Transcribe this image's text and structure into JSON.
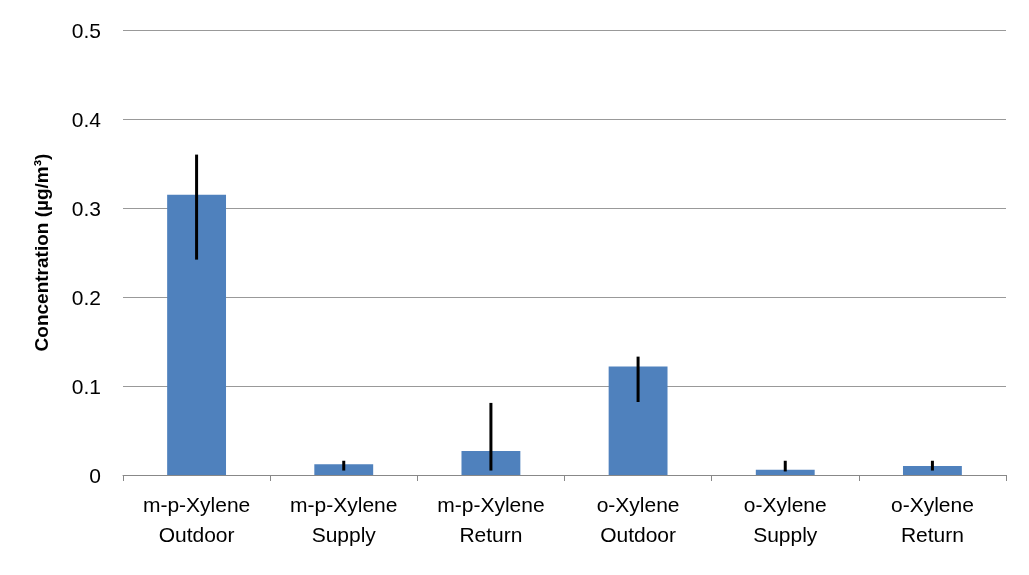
{
  "chart_data": {
    "type": "bar",
    "ylabel": "Concentration (µg/m³)",
    "categories": [
      "m-p-Xylene\nOutdoor",
      "m-p-Xylene\nSupply",
      "m-p-Xylene\nReturn",
      "o-Xylene\nOutdoor",
      "o-Xylene\nSupply",
      "o-Xylene\nReturn"
    ],
    "values": [
      0.315,
      0.012,
      0.027,
      0.122,
      0.006,
      0.01
    ],
    "errors": [
      [
        0.242,
        0.36
      ],
      [
        0.005,
        0.016
      ],
      [
        0.005,
        0.081
      ],
      [
        0.082,
        0.133
      ],
      [
        0.004,
        0.016
      ],
      [
        0.005,
        0.016
      ]
    ],
    "color": "#4f81bd",
    "ylim": [
      0,
      0.5
    ],
    "yticks": [
      0,
      0.1,
      0.2,
      0.3,
      0.4,
      0.5
    ],
    "grid": "y"
  }
}
